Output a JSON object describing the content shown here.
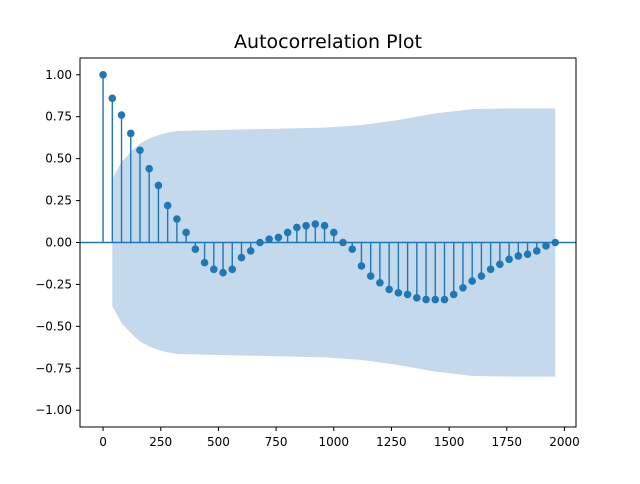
{
  "chart_data": {
    "type": "stem",
    "title": "Autocorrelation Plot",
    "xlabel": "",
    "ylabel": "",
    "xlim": [
      -100,
      2050
    ],
    "ylim": [
      -1.1,
      1.1
    ],
    "x_ticks": [
      0,
      250,
      500,
      750,
      1000,
      1250,
      1500,
      1750,
      2000
    ],
    "x_tick_labels": [
      "0",
      "250",
      "500",
      "750",
      "1000",
      "1250",
      "1500",
      "1750",
      "2000"
    ],
    "y_ticks": [
      1.0,
      0.75,
      0.5,
      0.25,
      0.0,
      -0.25,
      -0.5,
      -0.75,
      -1.0
    ],
    "y_tick_labels": [
      "1.00",
      "0.75",
      "0.50",
      "0.25",
      "0.00",
      "−0.25",
      "−0.50",
      "−0.75",
      "−1.00"
    ],
    "lag_step": 40,
    "values": [
      1.0,
      0.86,
      0.76,
      0.65,
      0.55,
      0.44,
      0.34,
      0.22,
      0.14,
      0.06,
      -0.04,
      -0.12,
      -0.16,
      -0.18,
      -0.16,
      -0.09,
      -0.05,
      0.0,
      0.02,
      0.03,
      0.06,
      0.09,
      0.1,
      0.11,
      0.1,
      0.06,
      0.0,
      -0.04,
      -0.14,
      -0.2,
      -0.24,
      -0.28,
      -0.3,
      -0.31,
      -0.33,
      -0.34,
      -0.34,
      -0.34,
      -0.31,
      -0.27,
      -0.23,
      -0.2,
      -0.16,
      -0.13,
      -0.1,
      -0.08,
      -0.07,
      -0.05,
      -0.02,
      0.0
    ],
    "confidence_band": {
      "x": [
        40,
        80,
        120,
        160,
        200,
        240,
        280,
        320,
        480,
        640,
        800,
        960,
        1120,
        1280,
        1440,
        1600,
        1760,
        1960
      ],
      "upper": [
        0.38,
        0.48,
        0.54,
        0.59,
        0.62,
        0.64,
        0.655,
        0.665,
        0.67,
        0.675,
        0.68,
        0.685,
        0.7,
        0.73,
        0.77,
        0.795,
        0.8,
        0.8
      ]
    },
    "colors": {
      "stem": "#1f77b4",
      "band": "#c5d9ec",
      "axes": "#000000",
      "zero_line": "#1f77b4"
    }
  }
}
